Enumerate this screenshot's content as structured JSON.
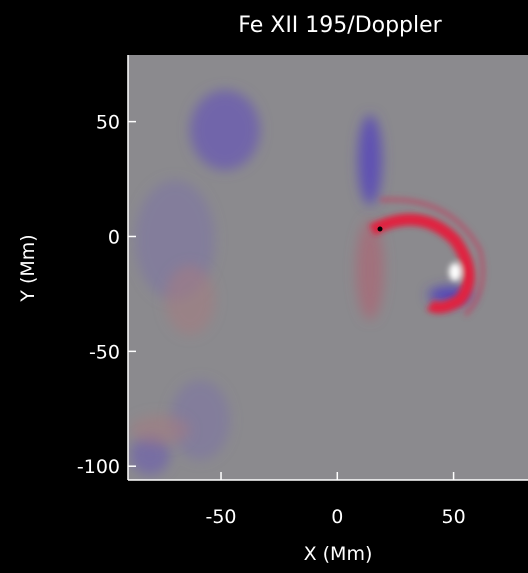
{
  "chart_data": {
    "type": "image",
    "title": "Fe XII 195/Doppler",
    "x_label": "X (Mm)",
    "y_label": "Y (Mm)",
    "xlim": [
      -90,
      82
    ],
    "ylim": [
      -106,
      79
    ],
    "xticks": [
      -50,
      0,
      50
    ],
    "yticks": [
      -100,
      -50,
      0,
      50
    ]
  }
}
